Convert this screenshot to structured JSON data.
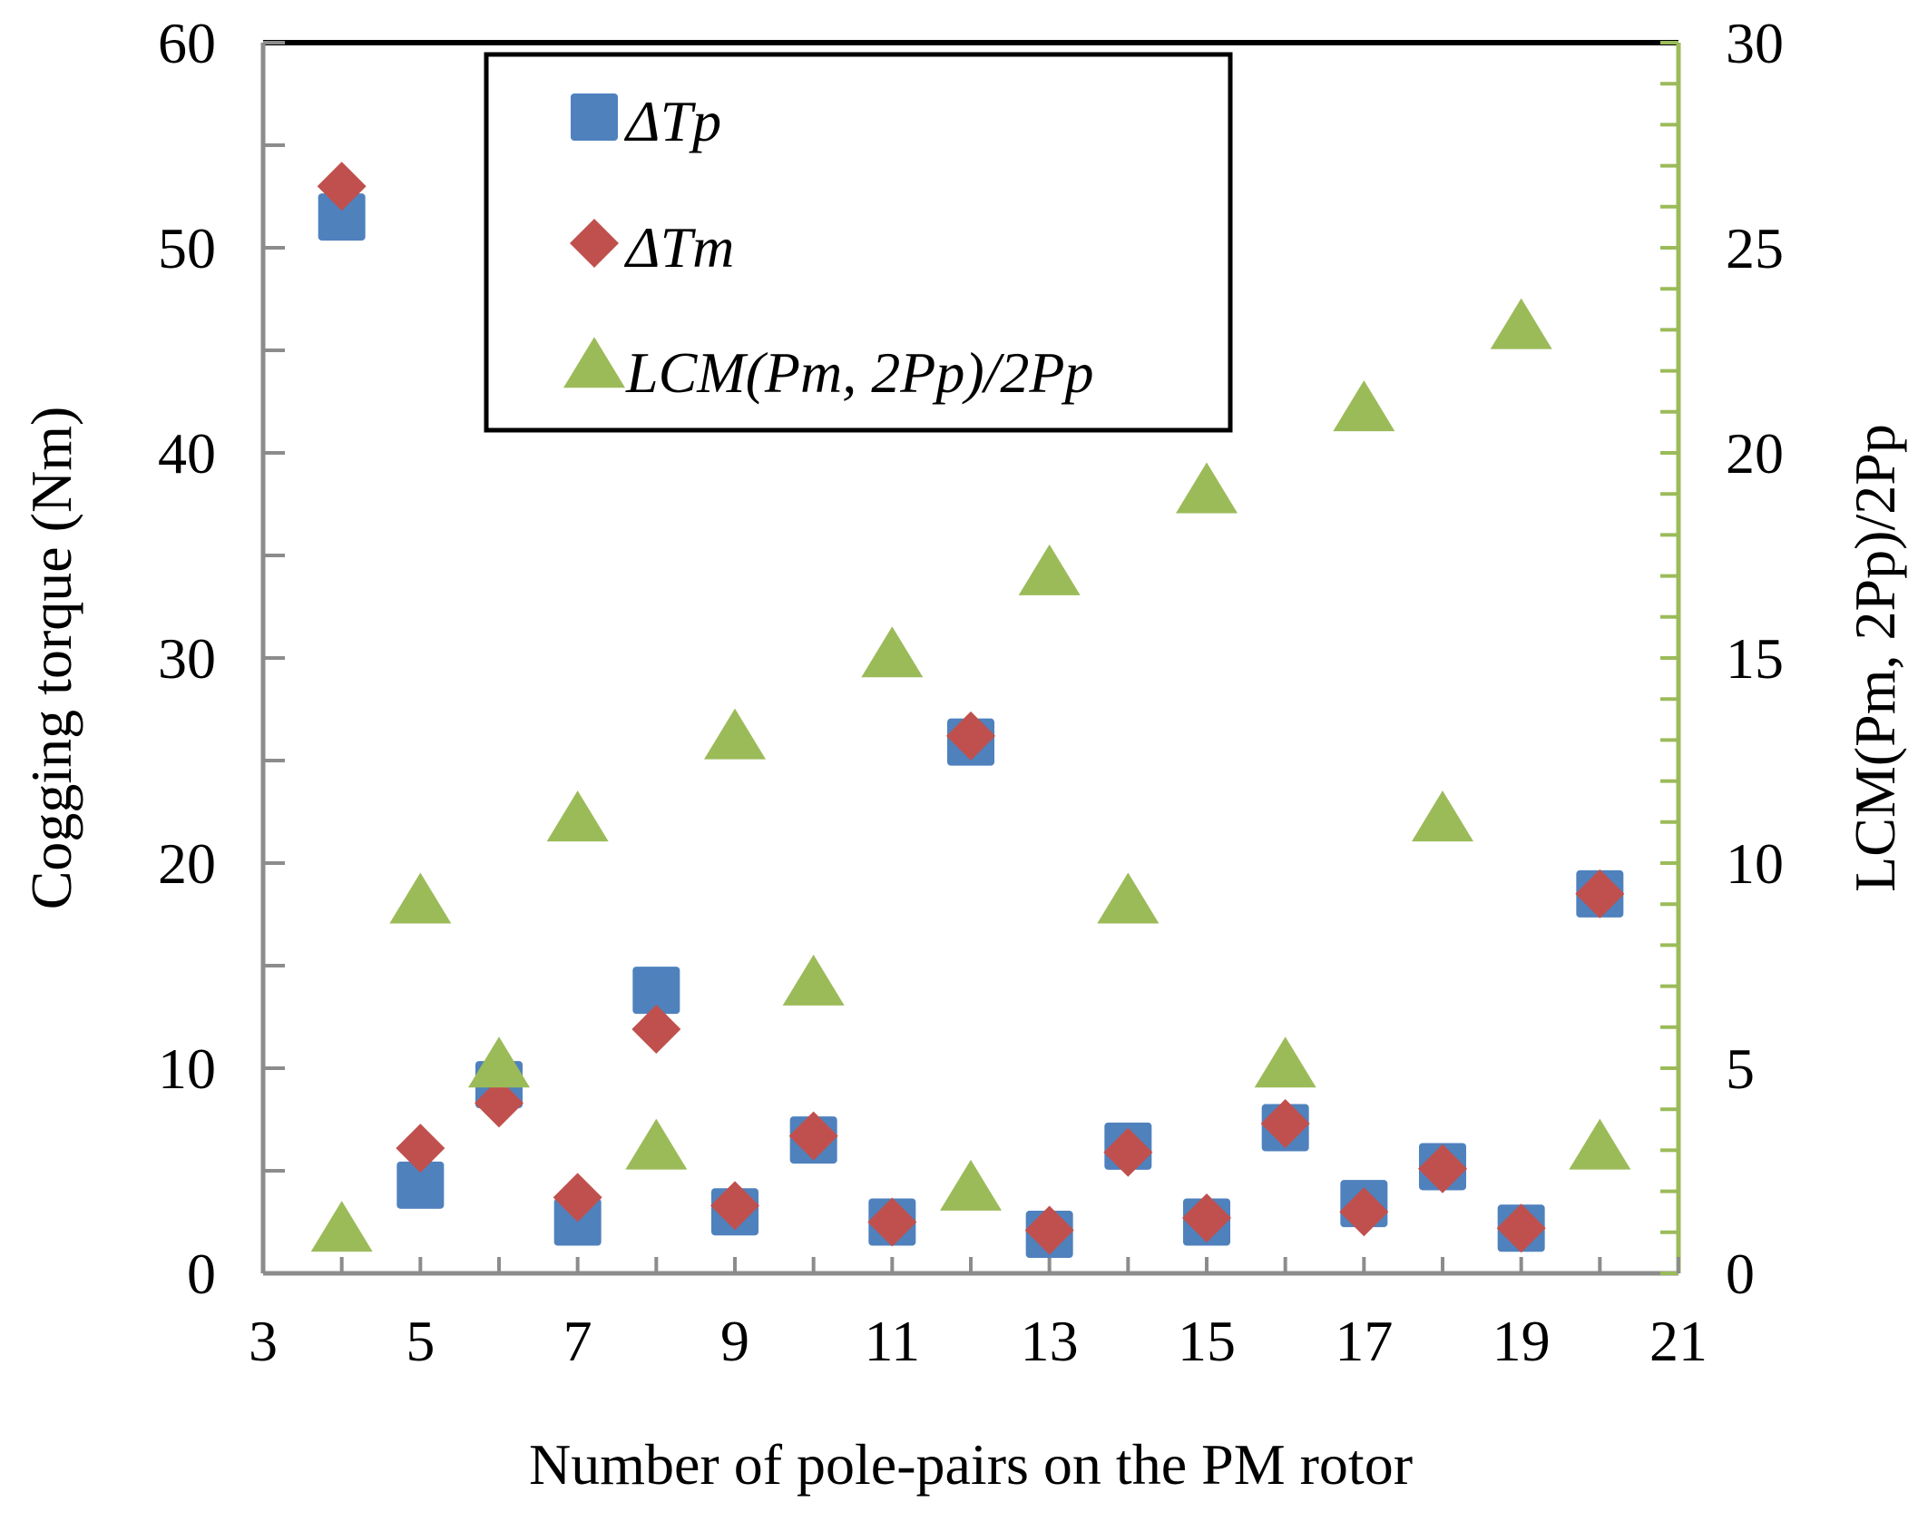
{
  "chart_data": {
    "type": "scatter",
    "title": "",
    "xlabel": "Number of pole-pairs on the PM rotor",
    "ylabel": "Cogging torque (Nm)",
    "y2label": "LCM(Pm,  2Pp)/2Pp",
    "xlim": [
      3,
      21
    ],
    "ylim": [
      0,
      60
    ],
    "y2lim": [
      0,
      30
    ],
    "x_ticks": [
      "3",
      "5",
      "7",
      "9",
      "11",
      "13",
      "15",
      "17",
      "19",
      "21"
    ],
    "y_ticks": [
      "0",
      "10",
      "20",
      "30",
      "40",
      "50",
      "60"
    ],
    "y2_ticks": [
      "0",
      "5",
      "10",
      "15",
      "20",
      "25",
      "30"
    ],
    "legend_position": "top-center",
    "x": [
      4,
      5,
      6,
      7,
      8,
      9,
      10,
      11,
      12,
      13,
      14,
      15,
      16,
      17,
      18,
      19,
      20
    ],
    "series": [
      {
        "name": "ΔTp",
        "axis": "left",
        "marker": "square",
        "color": "#4F81BD",
        "values": [
          51.5,
          4.3,
          9.2,
          2.5,
          13.8,
          3.0,
          6.5,
          2.5,
          25.9,
          1.9,
          6.2,
          2.5,
          7.1,
          3.4,
          5.2,
          2.2,
          18.5
        ]
      },
      {
        "name": "ΔTm",
        "axis": "left",
        "marker": "diamond",
        "color": "#C0504D",
        "values": [
          53.0,
          6.1,
          8.3,
          3.7,
          11.9,
          3.3,
          6.7,
          2.5,
          26.2,
          2.1,
          5.9,
          2.7,
          7.3,
          3.0,
          5.1,
          2.2,
          18.5
        ]
      },
      {
        "name": "LCM(Pm, 2Pp)/2Pp",
        "axis": "right",
        "marker": "triangle",
        "color": "#9BBB59",
        "values": [
          1,
          9,
          5,
          11,
          3,
          13,
          7,
          15,
          2,
          17,
          9,
          19,
          5,
          21,
          11,
          23,
          3
        ]
      }
    ]
  }
}
